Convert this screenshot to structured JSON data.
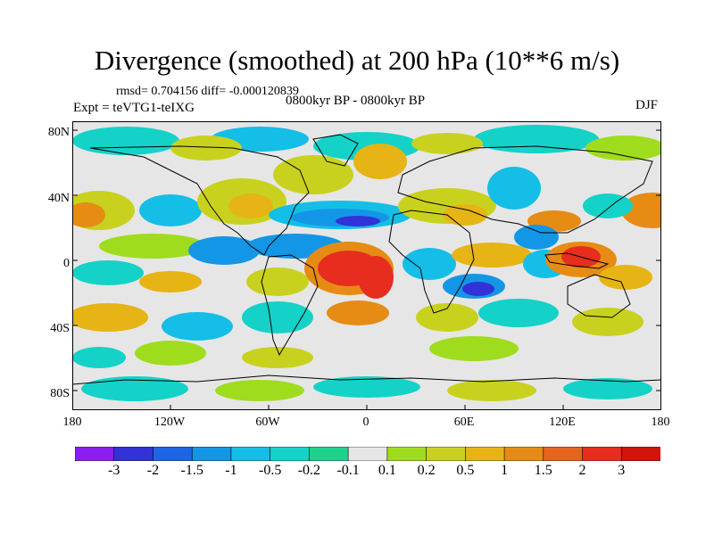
{
  "title": "Divergence (smoothed) at 200 hPa (10**6 m/s)",
  "stats": "rmsd= 0.704156 diff= -0.000120839",
  "experiment": "Expt = teVTG1-teIXG",
  "period": "0800kyr BP - 0800kyr BP",
  "season": "DJF",
  "lat_labels": [
    "80N",
    "40N",
    "0",
    "40S",
    "80S"
  ],
  "lon_labels": [
    "180",
    "120W",
    "60W",
    "0",
    "60E",
    "120E",
    "180"
  ],
  "colorbar": {
    "labels": [
      "-3",
      "-2",
      "-1.5",
      "-1",
      "-0.5",
      "-0.2",
      "-0.1",
      "0.1",
      "0.2",
      "0.5",
      "1",
      "1.5",
      "2",
      "3"
    ],
    "colors": [
      "#8a1ff0",
      "#3232d8",
      "#1e64e6",
      "#1496e6",
      "#14bee6",
      "#14d2c8",
      "#1ed28c",
      "#e6e6e6",
      "#a0dc1e",
      "#c8d21e",
      "#e6b414",
      "#e68c14",
      "#e6641e",
      "#e62d1e",
      "#d2140a"
    ]
  },
  "map_colors": {
    "background": "#e6e6e6",
    "cyan": "#14d2c8",
    "light_blue": "#14bee6",
    "blue": "#1496e6",
    "dark_blue": "#3232d8",
    "green": "#a0dc1e",
    "yellow": "#c8d21e",
    "orange": "#e6b414",
    "dark_orange": "#e68c14",
    "red": "#e62d1e",
    "coast": "#000000"
  }
}
